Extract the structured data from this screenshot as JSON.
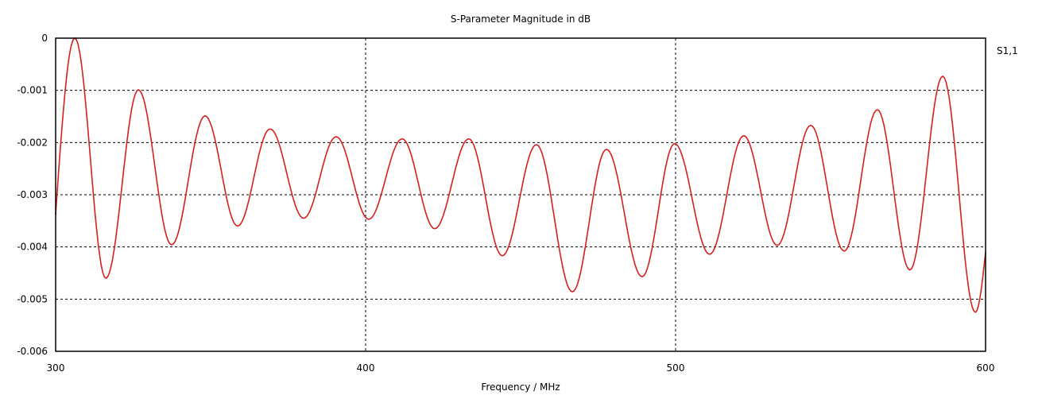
{
  "chart_data": {
    "type": "line",
    "title": "S-Parameter Magnitude in dB",
    "xlabel": "Frequency / MHz",
    "ylabel": "",
    "xlim": [
      300,
      600
    ],
    "ylim": [
      -0.006,
      0
    ],
    "xticks": [
      300,
      400,
      500,
      600
    ],
    "xtick_labels": [
      "300",
      "400",
      "500",
      "600"
    ],
    "yticks": [
      0,
      -0.001,
      -0.002,
      -0.003,
      -0.004,
      -0.005,
      -0.006
    ],
    "ytick_labels": [
      "0",
      "-0.001",
      "-0.002",
      "-0.003",
      "-0.004",
      "-0.005",
      "-0.006"
    ],
    "grid": true,
    "legend_position": "right",
    "series": [
      {
        "name": "S1,1",
        "color": "#d42020",
        "x": [
          300,
          306.2,
          316.2,
          326.7,
          337.4,
          348.2,
          358.7,
          369.2,
          380,
          390.5,
          401,
          411.8,
          422.3,
          433.3,
          444.1,
          455.1,
          466.7,
          477.7,
          489.2,
          499.7,
          511,
          522,
          532.8,
          543.6,
          554.4,
          565.1,
          575.6,
          586.2,
          596.7,
          600
        ],
        "y": [
          -0.00338,
          0,
          -0.0046,
          -0.00099,
          -0.00396,
          -0.00149,
          -0.0036,
          -0.00174,
          -0.00345,
          -0.00189,
          -0.00347,
          -0.00193,
          -0.00365,
          -0.00193,
          -0.00417,
          -0.00204,
          -0.00486,
          -0.00213,
          -0.00457,
          -0.00202,
          -0.00414,
          -0.00187,
          -0.00397,
          -0.00167,
          -0.00408,
          -0.00137,
          -0.00444,
          -0.00073,
          -0.00525,
          -0.0041
        ]
      }
    ]
  }
}
